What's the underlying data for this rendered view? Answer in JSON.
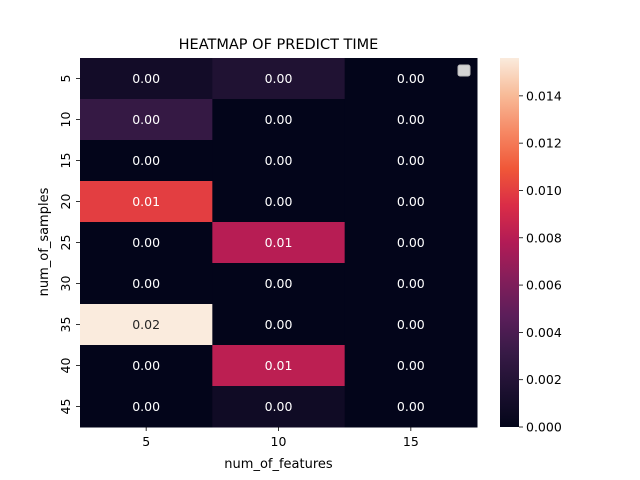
{
  "chart_data": {
    "type": "heatmap",
    "title": "HEATMAP OF PREDICT TIME",
    "xlabel": "num_of_features",
    "ylabel": "num_of_samples",
    "x_categories": [
      "5",
      "10",
      "15"
    ],
    "y_categories": [
      "5",
      "10",
      "15",
      "20",
      "25",
      "30",
      "35",
      "40",
      "45"
    ],
    "values": [
      [
        0.001,
        0.0018,
        0.0
      ],
      [
        0.003,
        0.0,
        0.0
      ],
      [
        0.0,
        0.0,
        0.0
      ],
      [
        0.01,
        0.0,
        0.0
      ],
      [
        0.0,
        0.008,
        0.0
      ],
      [
        0.0,
        0.0,
        0.0
      ],
      [
        0.0156,
        0.0,
        0.0
      ],
      [
        0.0,
        0.0082,
        0.0
      ],
      [
        0.0,
        0.0008,
        0.0
      ]
    ],
    "cell_labels": [
      [
        "0.00",
        "0.00",
        "0.00"
      ],
      [
        "0.00",
        "0.00",
        "0.00"
      ],
      [
        "0.00",
        "0.00",
        "0.00"
      ],
      [
        "0.01",
        "0.00",
        "0.00"
      ],
      [
        "0.00",
        "0.01",
        "0.00"
      ],
      [
        "0.00",
        "0.00",
        "0.00"
      ],
      [
        "0.02",
        "0.00",
        "0.00"
      ],
      [
        "0.00",
        "0.01",
        "0.00"
      ],
      [
        "0.00",
        "0.00",
        "0.00"
      ]
    ],
    "colorbar": {
      "min": 0,
      "max": 0.0156,
      "ticks": [
        0.0,
        0.002,
        0.004,
        0.006,
        0.008,
        0.01,
        0.012,
        0.014
      ],
      "tick_labels": [
        "0.000",
        "0.002",
        "0.004",
        "0.006",
        "0.008",
        "0.010",
        "0.012",
        "0.014"
      ]
    },
    "colormap": "rocket",
    "legend": "top-right"
  }
}
